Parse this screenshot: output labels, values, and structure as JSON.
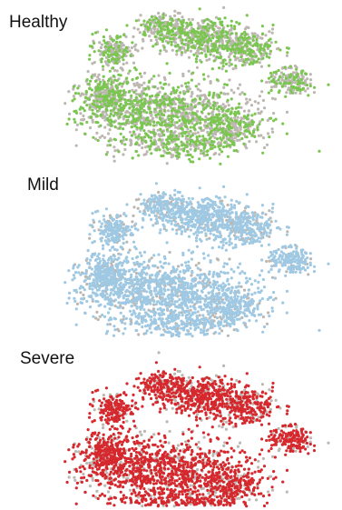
{
  "chart_data": {
    "type": "scatter",
    "description_of_encoding": "",
    "background_color": "#bdb7b1",
    "panels": [
      {
        "label": "Healthy",
        "color": "#7ac651",
        "highlight_fraction": 0.45
      },
      {
        "label": "Mild",
        "color": "#9fc8e3",
        "highlight_fraction": 0.82
      },
      {
        "label": "Severe",
        "color": "#d5292e",
        "highlight_fraction": 0.78
      }
    ],
    "xlabel": "",
    "ylabel": "",
    "grid": false,
    "axes": false
  }
}
